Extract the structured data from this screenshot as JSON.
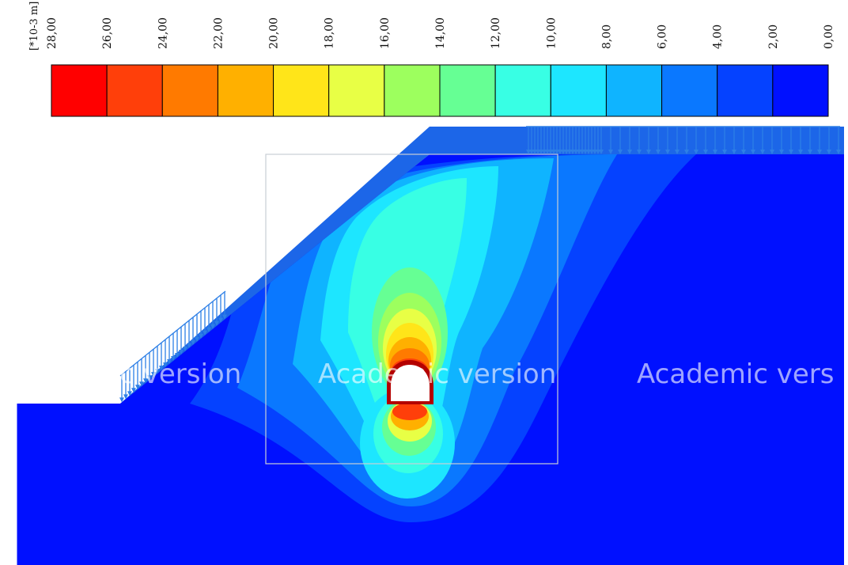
{
  "legend": {
    "unit_label": "[*10-3 m]",
    "tick_labels": [
      "28,00",
      "26,00",
      "24,00",
      "22,00",
      "20,00",
      "18,00",
      "16,00",
      "14,00",
      "12,00",
      "10,00",
      "8,00",
      "6,00",
      "4,00",
      "2,00",
      "0,00"
    ],
    "bin_colors": [
      "#ff0000",
      "#ff3f0a",
      "#ff7a00",
      "#ffb000",
      "#ffe519",
      "#e8ff45",
      "#9dff5e",
      "#66ff94",
      "#38ffe4",
      "#1de6ff",
      "#0fb4ff",
      "#0a78ff",
      "#0542ff",
      "#0010ff"
    ]
  },
  "colors": {
    "background_deep": "#0010ff",
    "load_arrows": "#2d7fe6",
    "outline": "#c9ced6",
    "tunnel_lining": "#b40000"
  },
  "watermarks": [
    "Academic version",
    "Academic version",
    "Academic vers"
  ]
}
